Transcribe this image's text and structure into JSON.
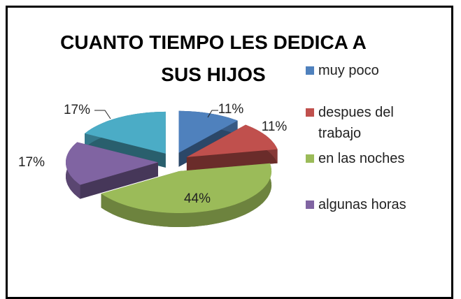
{
  "chart_data": {
    "type": "pie3d",
    "title": "CUANTO TIEMPO LES DEDICA A SUS HIJOS",
    "categories": [
      "muy poco",
      "despues del trabajo",
      "en las noches",
      "algunas horas",
      null
    ],
    "values": [
      11,
      11,
      44,
      17,
      17
    ],
    "value_labels": [
      "11%",
      "11%",
      "44%",
      "17%",
      "17%"
    ],
    "colors": [
      "#4f81bd",
      "#c0504d",
      "#9bbb59",
      "#8064a2",
      "#4bacc6"
    ],
    "legend": "right"
  }
}
